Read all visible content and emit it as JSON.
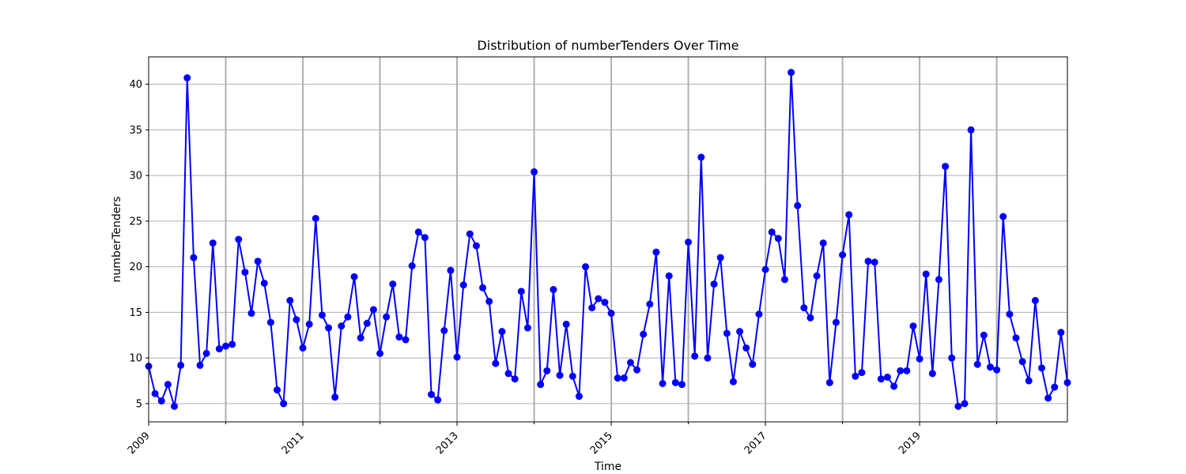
{
  "chart_data": {
    "type": "line",
    "title": "Distribution of numberTenders Over Time",
    "xlabel": "Time",
    "ylabel": "numberTenders",
    "x_start": "2009-01",
    "x_end": "2020-12",
    "xlim": [
      "2009-01",
      "2020-12"
    ],
    "ylim": [
      3,
      43
    ],
    "x_major_ticks": [
      "2009",
      "2011",
      "2013",
      "2015",
      "2017",
      "2019"
    ],
    "x_minor_gridlines": [
      "2010",
      "2012",
      "2014",
      "2016",
      "2018",
      "2020"
    ],
    "y_ticks": [
      5,
      10,
      15,
      20,
      25,
      30,
      35,
      40
    ],
    "grid": true,
    "series": [
      {
        "color": "#0000ff",
        "marker": "circle",
        "x": [
          "2009-01",
          "2009-02",
          "2009-03",
          "2009-04",
          "2009-05",
          "2009-06",
          "2009-07",
          "2009-08",
          "2009-09",
          "2009-10",
          "2009-11",
          "2009-12",
          "2010-01",
          "2010-02",
          "2010-03",
          "2010-04",
          "2010-05",
          "2010-06",
          "2010-07",
          "2010-08",
          "2010-09",
          "2010-10",
          "2010-11",
          "2010-12",
          "2011-01",
          "2011-02",
          "2011-03",
          "2011-04",
          "2011-05",
          "2011-06",
          "2011-07",
          "2011-08",
          "2011-09",
          "2011-10",
          "2011-11",
          "2011-12",
          "2012-01",
          "2012-02",
          "2012-03",
          "2012-04",
          "2012-05",
          "2012-06",
          "2012-07",
          "2012-08",
          "2012-09",
          "2012-10",
          "2012-11",
          "2012-12",
          "2013-01",
          "2013-02",
          "2013-03",
          "2013-04",
          "2013-05",
          "2013-06",
          "2013-07",
          "2013-08",
          "2013-09",
          "2013-10",
          "2013-11",
          "2013-12",
          "2014-01",
          "2014-02",
          "2014-03",
          "2014-04",
          "2014-05",
          "2014-06",
          "2014-07",
          "2014-08",
          "2014-09",
          "2014-10",
          "2014-11",
          "2014-12",
          "2015-01",
          "2015-02",
          "2015-03",
          "2015-04",
          "2015-05",
          "2015-06",
          "2015-07",
          "2015-08",
          "2015-09",
          "2015-10",
          "2015-11",
          "2015-12",
          "2016-01",
          "2016-02",
          "2016-03",
          "2016-04",
          "2016-05",
          "2016-06",
          "2016-07",
          "2016-08",
          "2016-09",
          "2016-10",
          "2016-11",
          "2016-12",
          "2017-01",
          "2017-02",
          "2017-03",
          "2017-04",
          "2017-05",
          "2017-06",
          "2017-07",
          "2017-08",
          "2017-09",
          "2017-10",
          "2017-11",
          "2017-12",
          "2018-01",
          "2018-02",
          "2018-03",
          "2018-04",
          "2018-05",
          "2018-06",
          "2018-07",
          "2018-08",
          "2018-09",
          "2018-10",
          "2018-11",
          "2018-12",
          "2019-01",
          "2019-02",
          "2019-03",
          "2019-04",
          "2019-05",
          "2019-06",
          "2019-07",
          "2019-08",
          "2019-09",
          "2019-10",
          "2019-11",
          "2019-12",
          "2020-01",
          "2020-02",
          "2020-03",
          "2020-04",
          "2020-05",
          "2020-06",
          "2020-07",
          "2020-08",
          "2020-09",
          "2020-10",
          "2020-11",
          "2020-12"
        ],
        "values": [
          9.1,
          6.1,
          5.3,
          7.1,
          4.7,
          9.2,
          40.7,
          21.0,
          9.2,
          10.5,
          22.6,
          11.0,
          11.3,
          11.5,
          23.0,
          19.4,
          14.9,
          20.6,
          18.2,
          13.9,
          6.5,
          5.0,
          16.3,
          14.2,
          11.1,
          13.7,
          25.3,
          14.7,
          13.3,
          5.7,
          13.5,
          14.5,
          18.9,
          12.2,
          13.8,
          15.3,
          10.5,
          14.5,
          18.1,
          12.3,
          12.0,
          20.1,
          23.8,
          23.2,
          6.0,
          5.4,
          13.0,
          19.6,
          10.1,
          18.0,
          23.6,
          22.3,
          17.7,
          16.2,
          9.4,
          12.9,
          8.3,
          7.7,
          17.3,
          13.3,
          30.4,
          7.1,
          8.6,
          17.5,
          8.1,
          13.7,
          8.0,
          5.8,
          20.0,
          15.5,
          16.5,
          16.1,
          14.9,
          7.8,
          7.8,
          9.5,
          8.7,
          12.6,
          15.9,
          21.6,
          7.2,
          19.0,
          7.3,
          7.1,
          22.7,
          10.2,
          32.0,
          10.0,
          18.1,
          21.0,
          12.7,
          7.4,
          12.9,
          11.1,
          9.3,
          14.8,
          19.7,
          23.8,
          23.1,
          18.6,
          41.3,
          26.7,
          15.5,
          14.4,
          19.0,
          22.6,
          7.3,
          13.9,
          21.3,
          25.7,
          8.0,
          8.4,
          20.6,
          20.5,
          7.7,
          7.9,
          6.9,
          8.6,
          8.6,
          13.5,
          9.9,
          19.2,
          8.3,
          18.6,
          31.0,
          10.0,
          4.7,
          5.0,
          35.0,
          9.3,
          12.5,
          9.0,
          8.7,
          25.5,
          14.8,
          12.2,
          9.6,
          7.5,
          16.3,
          8.9,
          5.6,
          6.8,
          12.8,
          7.3
        ]
      }
    ]
  }
}
